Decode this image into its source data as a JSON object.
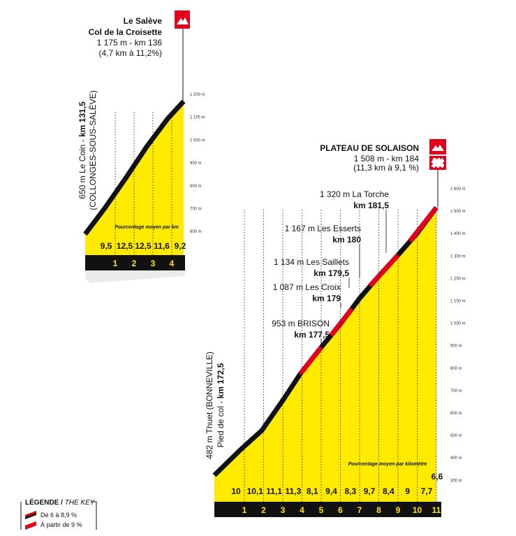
{
  "salève": {
    "name": "Le Salève",
    "col": "Col de la Croisette",
    "summit": "1 175 m - km 136",
    "stats": "(4,7 km à 11,2%)",
    "start_label": "650 m Le Coin - ",
    "start_km": "km 131,5",
    "start_place": "(COLLONGES-SOUS-SALÈVE)",
    "avg_note": "Pourcentage moyen par km",
    "altitudes": [
      "1 200 m",
      "1 100 m",
      "1 000 m",
      "900 m",
      "800 m",
      "700 m",
      "600 m"
    ],
    "percentages": [
      "9,5",
      "12,5",
      "12,5",
      "11,6",
      "9,2"
    ],
    "km": [
      "1",
      "2",
      "3",
      "4"
    ]
  },
  "solaison": {
    "name": "PLATEAU DE SOLAISON",
    "summit": "1 508 m - km 184",
    "stats": "(11,3 km à 9,1 %)",
    "start_label": "482 m Thuet (BONNEVILLE)",
    "start_prefix": "Pied de col - ",
    "start_km": "km 172,5",
    "avg_note": "Pourcentage moyen par kilomètre",
    "altitudes": [
      "1 600 m",
      "1 500 m",
      "1 400 m",
      "1 300 m",
      "1 200 m",
      "1 100 m",
      "1 000 m",
      "900 m",
      "800 m",
      "700 m",
      "600 m",
      "500 m",
      "400 m",
      "300 m"
    ],
    "percentages": [
      "10",
      "10,1",
      "11,1",
      "11,3",
      "8,1",
      "9,4",
      "8,3",
      "9,7",
      "8,4",
      "9",
      "7,7",
      "6,6"
    ],
    "km": [
      "1",
      "2",
      "3",
      "4",
      "5",
      "6",
      "7",
      "8",
      "9",
      "10",
      "11"
    ],
    "waypoints": [
      {
        "label": "1 320 m La Torche",
        "km": "km 181,5"
      },
      {
        "label": "1 167 m Les Esserts",
        "km": "km 180"
      },
      {
        "label": "1 134 m Les Saillets",
        "km": "km 179,5"
      },
      {
        "label": "1 087 m Les Croix",
        "km": "km 179"
      },
      {
        "label": "953 m BRISON",
        "km": "km 177,5"
      }
    ]
  },
  "legend": {
    "title": "LÉGENDE",
    "title_en": "THE KEY",
    "items": [
      "De 6 à 8,9 %",
      "À partir de 9 %"
    ]
  }
}
